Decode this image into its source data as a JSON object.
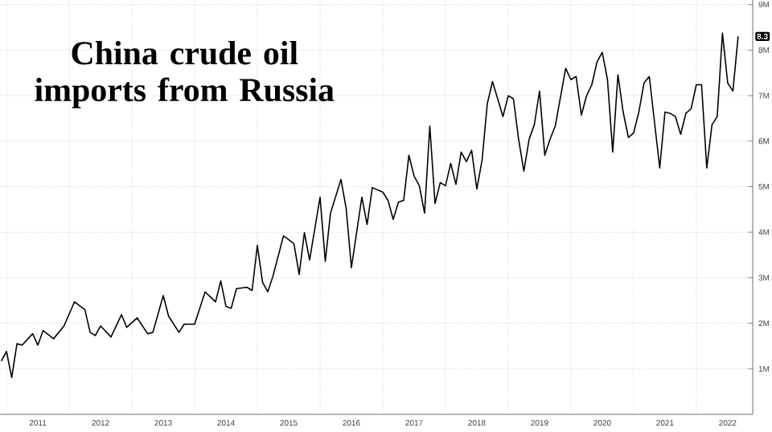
{
  "chart_data": {
    "type": "line",
    "title": "China crude oil imports from Russia",
    "x": [
      "2010-12",
      "2011-01",
      "2011-02",
      "2011-03",
      "2011-04",
      "2011-06",
      "2011-07",
      "2011-08",
      "2011-10",
      "2011-12",
      "2012-02",
      "2012-04",
      "2012-05",
      "2012-06",
      "2012-07",
      "2012-09",
      "2012-11",
      "2012-12",
      "2013-02",
      "2013-04",
      "2013-05",
      "2013-07",
      "2013-08",
      "2013-10",
      "2013-11",
      "2014-01",
      "2014-03",
      "2014-05",
      "2014-06",
      "2014-07",
      "2014-08",
      "2014-09",
      "2014-11",
      "2014-12",
      "2015-01",
      "2015-02",
      "2015-03",
      "2015-04",
      "2015-06",
      "2015-08",
      "2015-09",
      "2015-10",
      "2015-11",
      "2016-01",
      "2016-02",
      "2016-03",
      "2016-05",
      "2016-06",
      "2016-07",
      "2016-09",
      "2016-10",
      "2016-11",
      "2017-01",
      "2017-02",
      "2017-03",
      "2017-04",
      "2017-05",
      "2017-06",
      "2017-07",
      "2017-08",
      "2017-09",
      "2017-10",
      "2017-11",
      "2017-12",
      "2018-01",
      "2018-02",
      "2018-03",
      "2018-04",
      "2018-05",
      "2018-06",
      "2018-07",
      "2018-08",
      "2018-09",
      "2018-10",
      "2018-12",
      "2019-01",
      "2019-02",
      "2019-03",
      "2019-04",
      "2019-05",
      "2019-06",
      "2019-07",
      "2019-08",
      "2019-09",
      "2019-10",
      "2019-12",
      "2020-01",
      "2020-02",
      "2020-03",
      "2020-04",
      "2020-05",
      "2020-06",
      "2020-07",
      "2020-08",
      "2020-09",
      "2020-10",
      "2020-11",
      "2020-12",
      "2021-01",
      "2021-02",
      "2021-03",
      "2021-04",
      "2021-06",
      "2021-07",
      "2021-08",
      "2021-09",
      "2021-10",
      "2021-11",
      "2021-12",
      "2022-01",
      "2022-02",
      "2022-03",
      "2022-04",
      "2022-05",
      "2022-06",
      "2022-07",
      "2022-08",
      "2022-09"
    ],
    "series": [
      {
        "color": "#000000",
        "values": [
          1.17,
          1.38,
          0.81,
          1.55,
          1.52,
          1.77,
          1.52,
          1.84,
          1.66,
          1.94,
          2.47,
          2.3,
          1.8,
          1.73,
          1.94,
          1.7,
          2.19,
          1.91,
          2.12,
          1.77,
          1.8,
          2.61,
          2.16,
          1.8,
          1.98,
          1.98,
          2.69,
          2.47,
          2.93,
          2.37,
          2.33,
          2.76,
          2.79,
          2.72,
          3.71,
          2.9,
          2.69,
          3.04,
          3.92,
          3.75,
          3.07,
          3.99,
          3.39,
          4.77,
          3.36,
          4.42,
          5.16,
          4.52,
          3.22,
          4.77,
          4.17,
          4.98,
          4.88,
          4.7,
          4.28,
          4.66,
          4.7,
          5.69,
          5.23,
          5.02,
          4.42,
          6.33,
          4.63,
          5.09,
          5.02,
          5.51,
          5.05,
          5.76,
          5.55,
          5.8,
          4.95,
          5.58,
          6.82,
          7.31,
          6.54,
          7.0,
          6.93,
          6.04,
          5.34,
          6.04,
          6.36,
          7.1,
          5.69,
          6.04,
          6.33,
          7.6,
          7.35,
          7.42,
          6.57,
          7.0,
          7.24,
          7.74,
          7.95,
          7.35,
          5.76,
          7.46,
          6.64,
          6.08,
          6.18,
          6.64,
          7.28,
          7.42,
          5.41,
          6.64,
          6.61,
          6.54,
          6.15,
          6.61,
          6.71,
          7.24,
          7.24,
          5.41,
          6.36,
          6.54,
          8.37,
          7.28,
          7.1,
          8.3
        ]
      }
    ],
    "xlim": [
      "2010-11-24",
      "2022-11-25"
    ],
    "xticks": [
      {
        "value": "2011-01-01",
        "label": null
      },
      {
        "value": "2011-07-01",
        "label": "2011"
      },
      {
        "value": "2012-01-01",
        "label": null
      },
      {
        "value": "2012-07-01",
        "label": "2012"
      },
      {
        "value": "2013-01-01",
        "label": null
      },
      {
        "value": "2013-07-01",
        "label": "2013"
      },
      {
        "value": "2014-01-01",
        "label": null
      },
      {
        "value": "2014-07-01",
        "label": "2014"
      },
      {
        "value": "2015-01-01",
        "label": null
      },
      {
        "value": "2015-07-01",
        "label": "2015"
      },
      {
        "value": "2016-01-01",
        "label": null
      },
      {
        "value": "2016-07-01",
        "label": "2016"
      },
      {
        "value": "2017-01-01",
        "label": null
      },
      {
        "value": "2017-07-01",
        "label": "2017"
      },
      {
        "value": "2018-01-01",
        "label": null
      },
      {
        "value": "2018-07-01",
        "label": "2018"
      },
      {
        "value": "2019-01-01",
        "label": null
      },
      {
        "value": "2019-07-01",
        "label": "2019"
      },
      {
        "value": "2020-01-01",
        "label": null
      },
      {
        "value": "2020-07-01",
        "label": "2020"
      },
      {
        "value": "2021-01-01",
        "label": null
      },
      {
        "value": "2021-07-01",
        "label": "2021"
      },
      {
        "value": "2022-01-01",
        "label": null
      },
      {
        "value": "2022-07-01",
        "label": "2022"
      }
    ],
    "ylim": [
      0,
      9.1
    ],
    "yticks": [
      {
        "value": 1,
        "label": "1M"
      },
      {
        "value": 2,
        "label": "2M"
      },
      {
        "value": 3,
        "label": "3M"
      },
      {
        "value": 4,
        "label": "4M"
      },
      {
        "value": 5,
        "label": "5M"
      },
      {
        "value": 6,
        "label": "6M"
      },
      {
        "value": 7,
        "label": "7M"
      },
      {
        "value": 8,
        "label": "8M"
      },
      {
        "value": 9,
        "label": "9M"
      }
    ],
    "grid": true,
    "line_style": "solid",
    "annotations": [
      {
        "text": "8.3",
        "x": "2022-09",
        "y": 8.3
      }
    ]
  }
}
